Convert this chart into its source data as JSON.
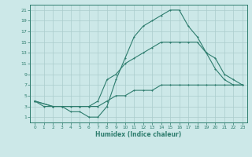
{
  "xlabel": "Humidex (Indice chaleur)",
  "bg_color": "#cce8e8",
  "grid_color": "#aacccc",
  "line_color": "#2e7d6e",
  "xlim": [
    -0.5,
    23.5
  ],
  "ylim": [
    0,
    22
  ],
  "xticks": [
    0,
    1,
    2,
    3,
    4,
    5,
    6,
    7,
    8,
    9,
    10,
    11,
    12,
    13,
    14,
    15,
    16,
    17,
    18,
    19,
    20,
    21,
    22,
    23
  ],
  "yticks": [
    1,
    3,
    5,
    7,
    9,
    11,
    13,
    15,
    17,
    19,
    21
  ],
  "line1_x": [
    0,
    1,
    2,
    3,
    4,
    5,
    6,
    7,
    8,
    9,
    10,
    11,
    12,
    13,
    14,
    15,
    16,
    17,
    18,
    19,
    20,
    21,
    22,
    23
  ],
  "line1_y": [
    4,
    3,
    3,
    3,
    2,
    2,
    1,
    1,
    3,
    8,
    12,
    16,
    18,
    19,
    20,
    21,
    21,
    18,
    16,
    13,
    10,
    8,
    7,
    7
  ],
  "line2_x": [
    0,
    2,
    3,
    5,
    6,
    7,
    8,
    9,
    10,
    11,
    12,
    13,
    14,
    15,
    16,
    17,
    18,
    19,
    20,
    21,
    22,
    23
  ],
  "line2_y": [
    4,
    3,
    3,
    3,
    3,
    4,
    8,
    9,
    11,
    12,
    13,
    14,
    15,
    15,
    15,
    15,
    15,
    13,
    12,
    9,
    8,
    7
  ],
  "line3_x": [
    0,
    2,
    3,
    4,
    5,
    6,
    7,
    8,
    9,
    10,
    11,
    12,
    13,
    14,
    15,
    16,
    17,
    18,
    19,
    20,
    21,
    22,
    23
  ],
  "line3_y": [
    4,
    3,
    3,
    3,
    3,
    3,
    3,
    4,
    5,
    5,
    6,
    6,
    6,
    7,
    7,
    7,
    7,
    7,
    7,
    7,
    7,
    7,
    7
  ]
}
